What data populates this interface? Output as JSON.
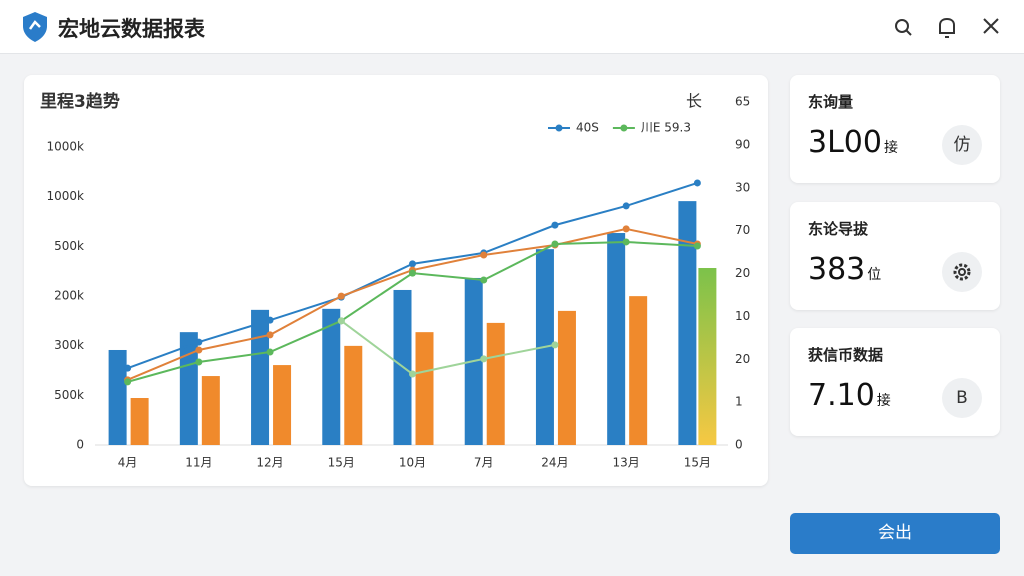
{
  "header": {
    "title": "宏地云数据报表"
  },
  "chart_data": {
    "type": "combo",
    "title": "里程3趋势",
    "corner_label": "长",
    "categories": [
      "4月",
      "11月",
      "12月",
      "15月",
      "10月",
      "7月",
      "24月",
      "13月",
      "15月"
    ],
    "y_labels": [
      "1000k",
      "1000k",
      "500k",
      "200k",
      "300k",
      "500k",
      "0"
    ],
    "y2_labels": [
      "65",
      "90",
      "30",
      "70",
      "20",
      "10",
      "20",
      "1",
      "0"
    ],
    "ylim": [
      0,
      100
    ],
    "series": [
      {
        "type": "bar",
        "color": "#2a7fc4",
        "values": [
          27.7,
          32.9,
          39.4,
          39.7,
          45.2,
          48.7,
          57.1,
          61.8,
          71.1
        ]
      },
      {
        "type": "bar",
        "color": "#f08a2c",
        "values": [
          13.7,
          20.1,
          23.3,
          28.9,
          32.9,
          35.6,
          39.1,
          43.4,
          null
        ]
      },
      {
        "type": "bar",
        "color": "#7cc24a",
        "values": [
          null,
          null,
          null,
          null,
          null,
          null,
          null,
          null,
          51.6
        ]
      },
      {
        "type": "line",
        "name": "40S",
        "color": "#2a7fc4",
        "values": [
          22.4,
          30.0,
          36.4,
          43.1,
          52.8,
          56.0,
          64.1,
          69.7,
          76.4
        ]
      },
      {
        "type": "line",
        "color": "#e0813a",
        "values": [
          19.0,
          27.7,
          32.1,
          43.4,
          51.0,
          55.4,
          58.3,
          63.0,
          58.6
        ]
      },
      {
        "type": "line",
        "name": "川E 59.3",
        "color": "#5cb85c",
        "values": [
          18.4,
          24.2,
          27.1,
          36.2,
          50.1,
          48.1,
          58.6,
          59.2,
          58.0
        ]
      },
      {
        "type": "line",
        "color": "#9fd49a",
        "values": [
          null,
          null,
          null,
          36.2,
          20.7,
          25.1,
          29.2,
          null,
          null
        ]
      }
    ],
    "legend": "top-right"
  },
  "cards": [
    {
      "title": "东询量",
      "value": "3L00",
      "unit": "接",
      "icon": "仿"
    },
    {
      "title": "东论导拔",
      "value": "383",
      "unit": "位"
    },
    {
      "title": "获信币数据",
      "value": "7.10",
      "unit": "接",
      "icon": "B"
    }
  ],
  "button": {
    "label": "会出"
  }
}
